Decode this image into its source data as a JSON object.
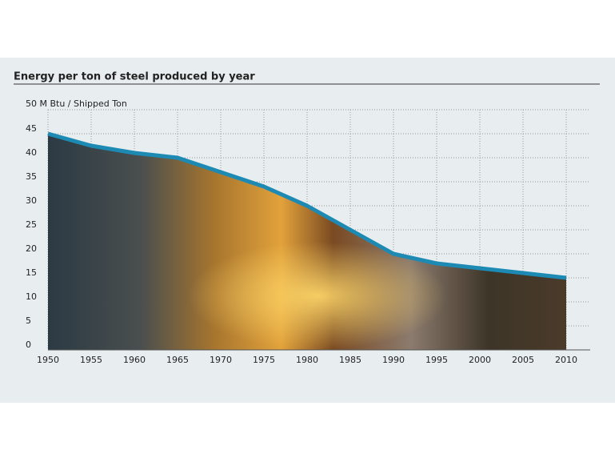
{
  "chart_data": {
    "type": "area",
    "title": "Energy per ton of steel produced by year",
    "x": [
      1950,
      1955,
      1960,
      1965,
      1970,
      1975,
      1980,
      1985,
      1990,
      1995,
      2000,
      2005,
      2010
    ],
    "series": [
      {
        "color": "#1d8ab4",
        "values": [
          45,
          42.5,
          41,
          40,
          37,
          34,
          30,
          25,
          20,
          18,
          17,
          16,
          15
        ]
      }
    ],
    "xlim": [
      1950,
      2010
    ],
    "xticks": [
      1950,
      1955,
      1960,
      1965,
      1970,
      1975,
      1980,
      1985,
      1990,
      1995,
      2000,
      2005,
      2010
    ],
    "ylim": [
      0,
      50
    ],
    "yticks": [
      0,
      5,
      10,
      15,
      20,
      25,
      30,
      35,
      40,
      45,
      {
        "value": 50,
        "label": "50 M Btu / Shipped Ton"
      }
    ],
    "grid": true
  }
}
